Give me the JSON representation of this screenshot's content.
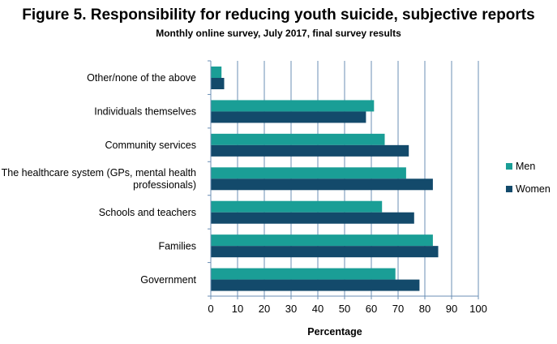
{
  "chart_data": {
    "type": "bar",
    "orientation": "horizontal",
    "title": "Figure 5. Responsibility for reducing youth suicide, subjective reports",
    "subtitle": "Monthly online survey, July 2017, final survey results",
    "xlabel": "Percentage",
    "ylabel": "",
    "xlim": [
      0,
      100
    ],
    "xticks": [
      0,
      10,
      20,
      30,
      40,
      50,
      60,
      70,
      80,
      90,
      100
    ],
    "grid": "vertical",
    "legend_position": "right",
    "categories": [
      [
        "Other/none of the above"
      ],
      [
        "Individuals themselves"
      ],
      [
        "Community services"
      ],
      [
        "The healthcare system (GPs, mental health",
        "professionals)"
      ],
      [
        "Schools and teachers"
      ],
      [
        "Families"
      ],
      [
        "Government"
      ]
    ],
    "series": [
      {
        "name": "Men",
        "color": "#1a9e96",
        "values": [
          4,
          61,
          65,
          73,
          64,
          83,
          69
        ]
      },
      {
        "name": "Women",
        "color": "#134a6b",
        "values": [
          5,
          58,
          74,
          83,
          76,
          85,
          78
        ]
      }
    ]
  }
}
